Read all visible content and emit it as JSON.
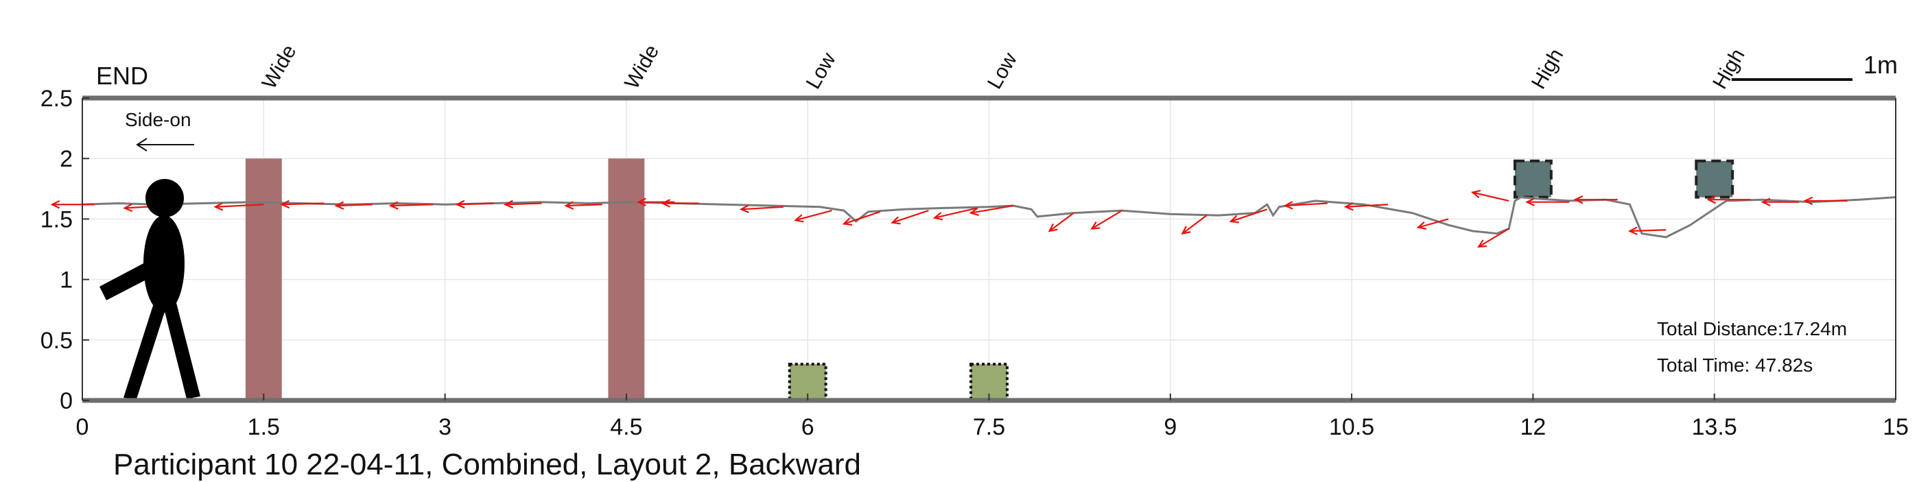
{
  "chart_data": {
    "type": "line",
    "title": "Participant 10 22-04-11, Combined, Layout 2, Backward",
    "xlim": [
      0,
      15
    ],
    "ylim": [
      0,
      2.5
    ],
    "x_ticks": [
      0,
      1.5,
      3,
      4.5,
      6,
      7.5,
      9,
      10.5,
      12,
      13.5,
      15
    ],
    "x_tick_labels": [
      "0",
      "1.5",
      "3",
      "4.5",
      "6",
      "7.5",
      "9",
      "10.5",
      "12",
      "13.5",
      "15"
    ],
    "y_ticks": [
      0,
      0.5,
      1,
      1.5,
      2,
      2.5
    ],
    "y_tick_labels": [
      "0",
      "0.5",
      "1",
      "1.5",
      "2",
      "2.5"
    ],
    "grid": true,
    "end_label": "END",
    "direction_label": "Side-on",
    "scale_bar_label": "1m",
    "scale_bar_length": 1,
    "annotations": {
      "total_distance": "Total Distance:17.24m",
      "total_time": "Total Time: 47.82s"
    },
    "obstacles": [
      {
        "label": "Wide",
        "type": "wide",
        "x": 1.5,
        "width": 0.3,
        "y0": 0,
        "y1": 2,
        "color": "#a86f70"
      },
      {
        "label": "Wide",
        "type": "wide",
        "x": 4.5,
        "width": 0.3,
        "y0": 0,
        "y1": 2,
        "color": "#a86f70"
      },
      {
        "label": "Low",
        "type": "low",
        "x": 6,
        "width": 0.3,
        "y0": 0,
        "y1": 0.3,
        "color": "#9aab72"
      },
      {
        "label": "Low",
        "type": "low",
        "x": 7.5,
        "width": 0.3,
        "y0": 0,
        "y1": 0.3,
        "color": "#9aab72"
      },
      {
        "label": "High",
        "type": "high",
        "x": 12,
        "width": 0.3,
        "y0": 1.68,
        "y1": 1.98,
        "color": "#5d7676"
      },
      {
        "label": "High",
        "type": "high",
        "x": 13.5,
        "width": 0.3,
        "y0": 1.68,
        "y1": 1.98,
        "color": "#5d7676"
      }
    ],
    "series": [
      {
        "color": "#7a7a7a",
        "x": [
          0,
          0.3,
          0.6,
          1.0,
          1.4,
          1.8,
          2.2,
          2.6,
          3.0,
          3.4,
          3.8,
          4.2,
          4.5,
          4.9,
          5.3,
          5.7,
          6.1,
          6.3,
          6.4,
          6.5,
          6.8,
          7.1,
          7.5,
          7.7,
          7.85,
          7.9,
          8.2,
          8.6,
          9.0,
          9.4,
          9.7,
          9.8,
          9.85,
          9.9,
          10.2,
          10.6,
          11.0,
          11.3,
          11.5,
          11.7,
          11.8,
          11.85,
          11.9,
          12.0,
          12.3,
          12.6,
          12.8,
          12.9,
          13.1,
          13.3,
          13.6,
          13.9,
          14.3,
          14.7,
          15.0
        ],
        "y": [
          1.62,
          1.63,
          1.62,
          1.63,
          1.64,
          1.63,
          1.62,
          1.63,
          1.62,
          1.63,
          1.64,
          1.63,
          1.64,
          1.63,
          1.62,
          1.61,
          1.6,
          1.57,
          1.48,
          1.56,
          1.58,
          1.59,
          1.6,
          1.61,
          1.58,
          1.52,
          1.55,
          1.57,
          1.54,
          1.53,
          1.55,
          1.62,
          1.53,
          1.6,
          1.65,
          1.62,
          1.55,
          1.45,
          1.4,
          1.38,
          1.42,
          1.65,
          1.68,
          1.67,
          1.65,
          1.66,
          1.62,
          1.38,
          1.35,
          1.45,
          1.65,
          1.66,
          1.64,
          1.66,
          1.68
        ]
      }
    ],
    "arrows": [
      {
        "x": 0.1,
        "y": 1.62,
        "dx": -0.35,
        "dy": 0.0
      },
      {
        "x": 0.7,
        "y": 1.61,
        "dx": -0.35,
        "dy": -0.02
      },
      {
        "x": 1.5,
        "y": 1.62,
        "dx": -0.4,
        "dy": -0.02
      },
      {
        "x": 2.0,
        "y": 1.63,
        "dx": -0.35,
        "dy": -0.01
      },
      {
        "x": 2.4,
        "y": 1.62,
        "dx": -0.3,
        "dy": -0.01
      },
      {
        "x": 2.9,
        "y": 1.62,
        "dx": -0.35,
        "dy": -0.01
      },
      {
        "x": 3.4,
        "y": 1.63,
        "dx": -0.3,
        "dy": -0.01
      },
      {
        "x": 3.8,
        "y": 1.63,
        "dx": -0.3,
        "dy": -0.01
      },
      {
        "x": 4.3,
        "y": 1.62,
        "dx": -0.3,
        "dy": -0.01
      },
      {
        "x": 4.9,
        "y": 1.64,
        "dx": -0.3,
        "dy": 0.0
      },
      {
        "x": 5.1,
        "y": 1.63,
        "dx": -0.3,
        "dy": 0.0
      },
      {
        "x": 5.8,
        "y": 1.6,
        "dx": -0.35,
        "dy": -0.02
      },
      {
        "x": 6.2,
        "y": 1.57,
        "dx": -0.3,
        "dy": -0.08
      },
      {
        "x": 6.6,
        "y": 1.56,
        "dx": -0.3,
        "dy": -0.1
      },
      {
        "x": 7.0,
        "y": 1.57,
        "dx": -0.3,
        "dy": -0.1
      },
      {
        "x": 7.4,
        "y": 1.59,
        "dx": -0.35,
        "dy": -0.08
      },
      {
        "x": 7.7,
        "y": 1.61,
        "dx": -0.35,
        "dy": -0.06
      },
      {
        "x": 8.2,
        "y": 1.55,
        "dx": -0.2,
        "dy": -0.15
      },
      {
        "x": 8.6,
        "y": 1.57,
        "dx": -0.25,
        "dy": -0.15
      },
      {
        "x": 9.3,
        "y": 1.53,
        "dx": -0.2,
        "dy": -0.15
      },
      {
        "x": 9.8,
        "y": 1.58,
        "dx": -0.3,
        "dy": -0.1
      },
      {
        "x": 10.3,
        "y": 1.63,
        "dx": -0.35,
        "dy": -0.02
      },
      {
        "x": 10.8,
        "y": 1.62,
        "dx": -0.35,
        "dy": -0.02
      },
      {
        "x": 11.3,
        "y": 1.5,
        "dx": -0.25,
        "dy": -0.07
      },
      {
        "x": 11.8,
        "y": 1.42,
        "dx": -0.25,
        "dy": -0.15
      },
      {
        "x": 11.8,
        "y": 1.65,
        "dx": -0.3,
        "dy": 0.07
      },
      {
        "x": 12.3,
        "y": 1.64,
        "dx": -0.35,
        "dy": 0.0
      },
      {
        "x": 12.7,
        "y": 1.66,
        "dx": -0.35,
        "dy": 0.0
      },
      {
        "x": 13.1,
        "y": 1.41,
        "dx": -0.3,
        "dy": -0.01
      },
      {
        "x": 13.8,
        "y": 1.66,
        "dx": -0.35,
        "dy": 0.0
      },
      {
        "x": 14.2,
        "y": 1.64,
        "dx": -0.3,
        "dy": 0.0
      },
      {
        "x": 14.6,
        "y": 1.65,
        "dx": -0.35,
        "dy": 0.0
      }
    ]
  }
}
